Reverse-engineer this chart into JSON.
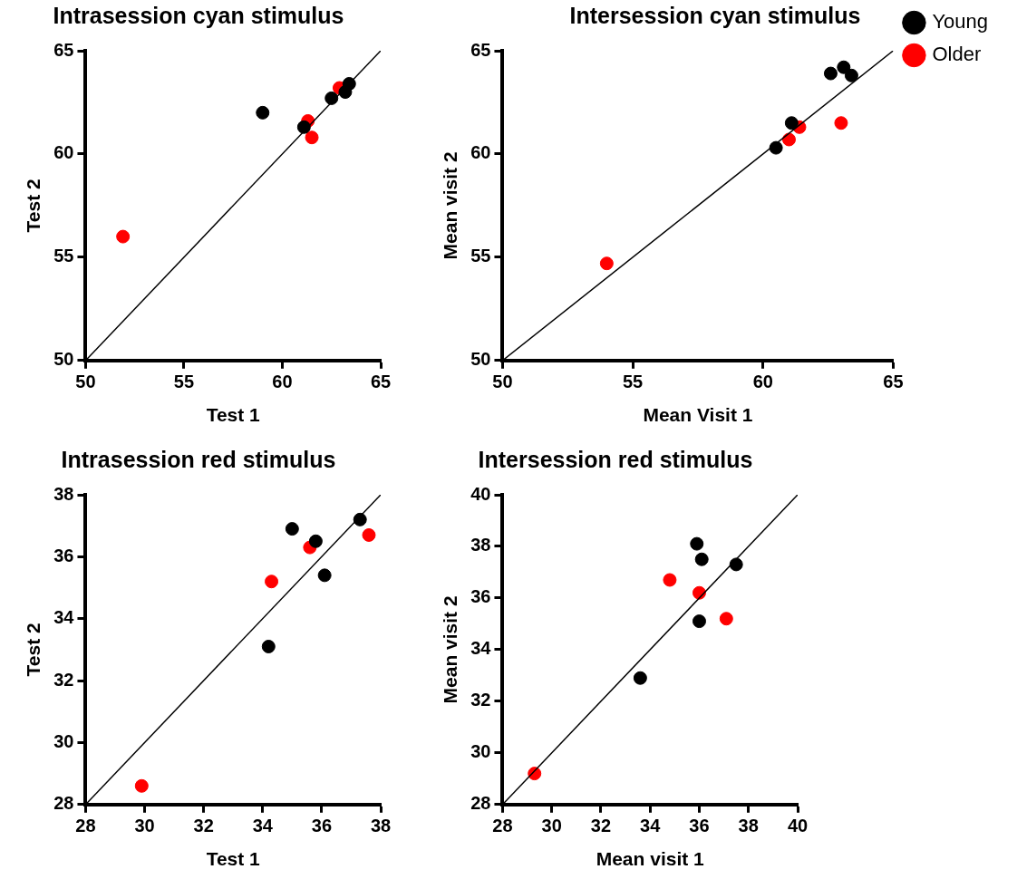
{
  "chart_data": [
    {
      "type": "scatter",
      "title": "Intrasession cyan stimulus",
      "xlabel": "Test 1",
      "ylabel": "Test 2",
      "xlim": [
        50,
        65
      ],
      "ylim": [
        50,
        65
      ],
      "xticks": [
        50,
        55,
        60,
        65
      ],
      "yticks": [
        50,
        55,
        60,
        65
      ],
      "grid": false,
      "legend": false,
      "marker": "circle",
      "series": [
        {
          "type": "line",
          "marker": "none",
          "color": "#000000",
          "x": [
            50,
            65
          ],
          "values": [
            50,
            65
          ]
        },
        {
          "color": "#000000",
          "x": [
            59.0,
            61.1,
            62.5,
            63.2,
            63.4
          ],
          "values": [
            62.0,
            61.3,
            62.7,
            63.0,
            63.4
          ]
        },
        {
          "color": "#ff0000",
          "x": [
            51.9,
            61.3,
            61.5,
            62.9
          ],
          "values": [
            56.0,
            61.6,
            60.8,
            63.2
          ]
        }
      ]
    },
    {
      "type": "scatter",
      "title": "Intersession cyan stimulus",
      "xlabel": "Mean Visit 1",
      "ylabel": "Mean visit 2",
      "xlim": [
        50,
        65
      ],
      "ylim": [
        50,
        65
      ],
      "xticks": [
        50,
        55,
        60,
        65
      ],
      "yticks": [
        50,
        55,
        60,
        65
      ],
      "grid": false,
      "legend": "top right",
      "marker": "circle",
      "series": [
        {
          "type": "line",
          "marker": "none",
          "color": "#000000",
          "x": [
            50,
            65
          ],
          "values": [
            50,
            65
          ]
        },
        {
          "name": "Young",
          "color": "#000000",
          "x": [
            60.5,
            61.1,
            62.6,
            63.1,
            63.4
          ],
          "values": [
            60.3,
            61.5,
            63.9,
            64.2,
            63.8
          ]
        },
        {
          "name": "Older",
          "color": "#ff0000",
          "x": [
            54.0,
            61.0,
            61.4,
            63.0
          ],
          "values": [
            54.7,
            60.7,
            61.3,
            61.5
          ]
        }
      ]
    },
    {
      "type": "scatter",
      "title": "Intrasession red stimulus",
      "xlabel": "Test 1",
      "ylabel": "Test 2",
      "xlim": [
        28,
        38
      ],
      "ylim": [
        28,
        38
      ],
      "xticks": [
        28,
        30,
        32,
        34,
        36,
        38
      ],
      "yticks": [
        28,
        30,
        32,
        34,
        36,
        38
      ],
      "grid": false,
      "legend": false,
      "marker": "circle",
      "series": [
        {
          "type": "line",
          "marker": "none",
          "color": "#000000",
          "x": [
            28,
            38
          ],
          "values": [
            28,
            38
          ]
        },
        {
          "color": "#000000",
          "x": [
            34.2,
            35.0,
            35.8,
            36.1,
            37.3
          ],
          "values": [
            33.1,
            36.9,
            36.5,
            35.4,
            37.2
          ]
        },
        {
          "color": "#ff0000",
          "x": [
            29.9,
            34.3,
            35.6,
            37.6
          ],
          "values": [
            28.6,
            35.2,
            36.3,
            36.7
          ]
        }
      ]
    },
    {
      "type": "scatter",
      "title": "Intersession red stimulus",
      "xlabel": "Mean visit 1",
      "ylabel": "Mean visit 2",
      "xlim": [
        28,
        40
      ],
      "ylim": [
        28,
        40
      ],
      "xticks": [
        28,
        30,
        32,
        34,
        36,
        38,
        40
      ],
      "yticks": [
        28,
        30,
        32,
        34,
        36,
        38,
        40
      ],
      "grid": false,
      "legend": false,
      "marker": "circle",
      "series": [
        {
          "type": "line",
          "marker": "none",
          "color": "#000000",
          "x": [
            28,
            40
          ],
          "values": [
            28,
            40
          ]
        },
        {
          "color": "#000000",
          "x": [
            33.6,
            35.9,
            36.1,
            36.0,
            37.5
          ],
          "values": [
            32.9,
            38.1,
            37.5,
            35.1,
            37.3
          ]
        },
        {
          "color": "#ff0000",
          "x": [
            29.3,
            34.8,
            36.0,
            37.1
          ],
          "values": [
            29.2,
            36.7,
            36.2,
            35.2
          ]
        }
      ]
    }
  ]
}
